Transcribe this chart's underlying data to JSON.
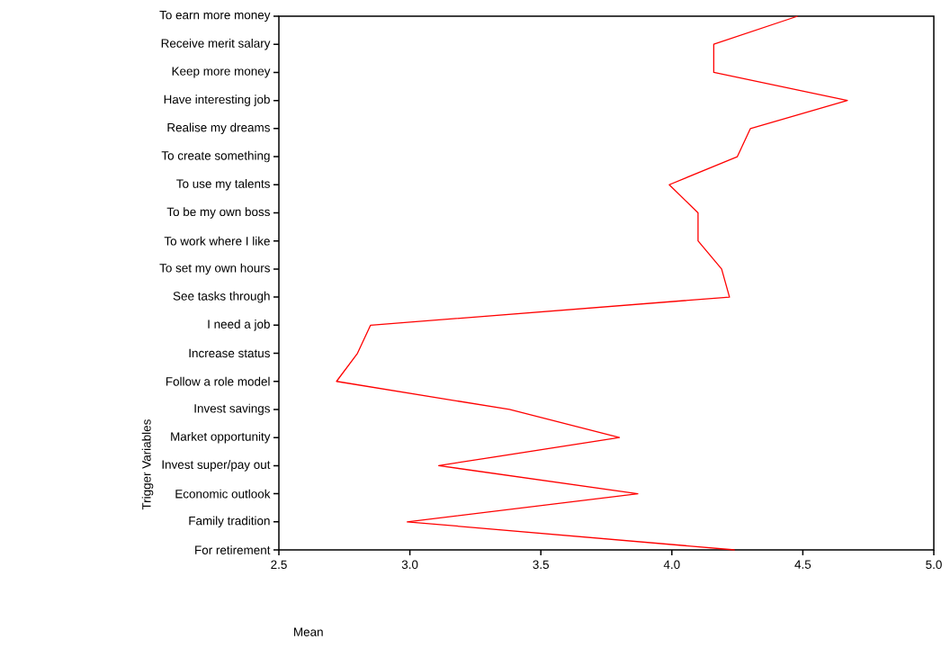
{
  "chart_data": {
    "type": "line",
    "orientation": "horizontal",
    "xlabel": "Mean",
    "ylabel": "Trigger Variables",
    "categories": [
      "To earn more money",
      "Receive merit salary",
      "Keep more money",
      "Have interesting job",
      "Realise my dreams",
      "To create something",
      "To use my talents",
      "To be my own boss",
      "To work where I like",
      "To set my own hours",
      "See tasks through",
      "I need a job",
      "Increase status",
      "Follow a role model",
      "Invest savings",
      "Market opportunity",
      "Invest super/pay out",
      "Economic outlook",
      "Family tradition",
      "For retirement"
    ],
    "series": [
      {
        "color": "#ff0000",
        "values": [
          4.48,
          4.16,
          4.16,
          4.67,
          4.3,
          4.25,
          3.99,
          4.1,
          4.1,
          4.19,
          4.22,
          2.85,
          2.8,
          2.72,
          3.38,
          3.8,
          3.11,
          3.87,
          2.99,
          4.24
        ]
      }
    ],
    "xlim": [
      2.5,
      5.0
    ],
    "xticks": [
      2.5,
      {
        "value": 3,
        "label": "3.0"
      },
      3.5,
      {
        "value": 4,
        "label": "4.0"
      },
      4.5,
      {
        "value": 5,
        "label": "5.0"
      }
    ],
    "marker": "none",
    "line_style": "solid",
    "grid": false
  }
}
